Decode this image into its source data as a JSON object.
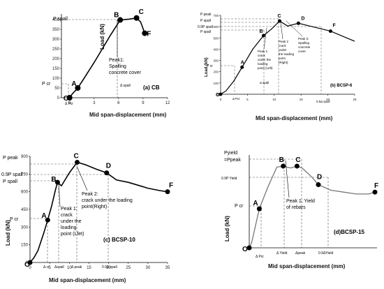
{
  "chart_data": [
    {
      "type": "line",
      "panel_label": "(a) CB",
      "xlabel": "Mid span-displacement (mm)",
      "ylabel": "Load (kN)",
      "xlim": [
        -1,
        12
      ],
      "ylim": [
        0,
        400
      ],
      "x_ticks": [
        "0",
        "3",
        "6",
        "9",
        "12"
      ],
      "y_ticks": [
        "0",
        "50",
        "100",
        "150",
        "200",
        "250",
        "300",
        "350",
        "400"
      ],
      "series": [
        {
          "values": [
            [
              0,
              0
            ],
            [
              0.3,
              18
            ],
            [
              1,
              50
            ],
            [
              1.7,
              95
            ],
            [
              3,
              180
            ],
            [
              4,
              250
            ],
            [
              5,
              320
            ],
            [
              6.2,
              398
            ],
            [
              7.3,
              402
            ],
            [
              8.2,
              408
            ],
            [
              8.7,
              388
            ],
            [
              9.2,
              330
            ]
          ]
        }
      ],
      "points": [
        {
          "label": "O",
          "x": 0,
          "y": 0
        },
        {
          "label": "A",
          "x": 1,
          "y": 50
        },
        {
          "label": "B",
          "x": 6.2,
          "y": 398
        },
        {
          "label": "C",
          "x": 8.2,
          "y": 408
        },
        {
          "label": "F",
          "x": 9.2,
          "y": 330
        }
      ],
      "ref_labels": {
        "p_spall": "P spall",
        "p_cr": "P cr",
        "d_cr": "Δ Pcr",
        "d_spall": "Δ spall"
      },
      "annotations": [
        "Peak1: Spalling concrete cover"
      ]
    },
    {
      "type": "line",
      "panel_label": "(b) BCSP-6",
      "xlabel": "Mid span-displacement (mm)",
      "ylabel": "Load (kN)",
      "xlim": [
        0,
        25
      ],
      "ylim": [
        0,
        700
      ],
      "x_ticks": [
        "0",
        "5",
        "10",
        "15",
        "20",
        "25"
      ],
      "y_ticks": [
        "0",
        "100",
        "200",
        "300",
        "400",
        "500",
        "600",
        "700"
      ],
      "series": [
        {
          "values": [
            [
              0,
              0
            ],
            [
              1,
              30
            ],
            [
              2.5,
              120
            ],
            [
              4,
              240
            ],
            [
              6,
              400
            ],
            [
              8,
              520
            ],
            [
              9.5,
              580
            ],
            [
              11,
              650
            ],
            [
              12.5,
              605
            ],
            [
              14.5,
              630
            ],
            [
              17,
              600
            ],
            [
              20.5,
              560
            ],
            [
              23,
              510
            ],
            [
              25,
              470
            ]
          ]
        }
      ],
      "points": [
        {
          "label": "O",
          "x": 0,
          "y": 0
        },
        {
          "label": "A",
          "x": 4,
          "y": 240
        },
        {
          "label": "B",
          "x": 8,
          "y": 520
        },
        {
          "label": "C",
          "x": 11,
          "y": 650
        },
        {
          "label": "D",
          "x": 14.5,
          "y": 630
        },
        {
          "label": "F",
          "x": 20.5,
          "y": 560
        }
      ],
      "ref_labels": {
        "p_peak": "P peak",
        "p_spall_top": "P spall",
        "p_09_spall": "0.9P spall",
        "p_spall_bot": "P spall",
        "p_cr": "P cr",
        "d_cr": "Δ Pcr",
        "d_spall": "Δ spall",
        "d_09_spall": "0.9Δ spall"
      },
      "annotations": [
        "Peak 1: crack under the loading point (Left)",
        "Peak 2 crack under the loading point (Right)",
        "Peak 3: Spalling concrete cover"
      ]
    },
    {
      "type": "line",
      "panel_label": "(c) BCSP-10",
      "xlabel": "Mid span-displacement (mm)",
      "ylabel": "Load (kN)",
      "xlim": [
        0,
        35
      ],
      "ylim": [
        0,
        900
      ],
      "x_ticks": [
        "0",
        "5",
        "10",
        "15",
        "20",
        "25",
        "30",
        "35"
      ],
      "y_ticks": [
        "0",
        "150",
        "300",
        "450",
        "600",
        "750",
        "900"
      ],
      "series": [
        {
          "values": [
            [
              0,
              0
            ],
            [
              1,
              40
            ],
            [
              2,
              100
            ],
            [
              3.5,
              250
            ],
            [
              4.5,
              360
            ],
            [
              5.5,
              480
            ],
            [
              6.5,
              620
            ],
            [
              7,
              680
            ],
            [
              8,
              650
            ],
            [
              10,
              760
            ],
            [
              12,
              850
            ],
            [
              14,
              830
            ],
            [
              17,
              790
            ],
            [
              19.5,
              760
            ],
            [
              22,
              700
            ],
            [
              25,
              680
            ],
            [
              28,
              650
            ],
            [
              30,
              630
            ],
            [
              33,
              610
            ],
            [
              35,
              600
            ]
          ]
        }
      ],
      "points": [
        {
          "label": "O",
          "x": 0,
          "y": 0
        },
        {
          "label": "A",
          "x": 4.5,
          "y": 360
        },
        {
          "label": "B",
          "x": 7,
          "y": 680
        },
        {
          "label": "C",
          "x": 12,
          "y": 850
        },
        {
          "label": "D",
          "x": 19.5,
          "y": 760
        },
        {
          "label": "F",
          "x": 35,
          "y": 600
        }
      ],
      "ref_labels": {
        "p_peak": "P peak",
        "p_09_spall": "0.9P spall",
        "p_spall": "P spall",
        "p_cr": "P cr",
        "d_cr": "Δ cr",
        "d_spall": "Δspall",
        "d_peak": "Δ peak",
        "d_09_spall": "0.9Δ spall"
      },
      "annotations": [
        "Peak 1: crack under the loading point (Lfet)",
        "Peak 2: crack under the loading point(Right)"
      ]
    },
    {
      "type": "line",
      "panel_label": "(d)BCSP-15",
      "xlabel": "Mid span-displacement (mm)",
      "ylabel": "Load (kN)",
      "xlim": [
        0,
        1
      ],
      "ylim": [
        0,
        1
      ],
      "x_ticks": [],
      "y_ticks": [],
      "series": [
        {
          "values": [
            [
              0,
              0
            ],
            [
              0.02,
              0.06
            ],
            [
              0.08,
              0.42
            ],
            [
              0.15,
              0.66
            ],
            [
              0.22,
              0.87
            ],
            [
              0.27,
              0.88
            ],
            [
              0.33,
              0.86
            ],
            [
              0.38,
              0.88
            ],
            [
              0.42,
              0.86
            ],
            [
              0.5,
              0.76
            ],
            [
              0.55,
              0.68
            ],
            [
              0.65,
              0.62
            ],
            [
              0.75,
              0.6
            ],
            [
              0.85,
              0.58
            ],
            [
              0.95,
              0.58
            ],
            [
              1,
              0.6
            ]
          ]
        }
      ],
      "points": [
        {
          "label": "O",
          "x": 0,
          "y": 0
        },
        {
          "label": "A",
          "x": 0.08,
          "y": 0.42
        },
        {
          "label": "B",
          "x": 0.27,
          "y": 0.88
        },
        {
          "label": "C",
          "x": 0.38,
          "y": 0.88
        },
        {
          "label": "D",
          "x": 0.55,
          "y": 0.68
        },
        {
          "label": "F",
          "x": 1,
          "y": 0.6
        }
      ],
      "ref_labels": {
        "p_yield": "Pyield =Ppeak",
        "p_09_yield": "0.9P Yield",
        "p_cr": "P cr",
        "d_cr": "Δ Pcr",
        "d_yield": "Δ Yield",
        "d_peak": "Δpeak",
        "d_09_yield": "0.9ΔYield"
      },
      "annotations": [
        "Peak 1: Yield of rebars"
      ]
    }
  ]
}
